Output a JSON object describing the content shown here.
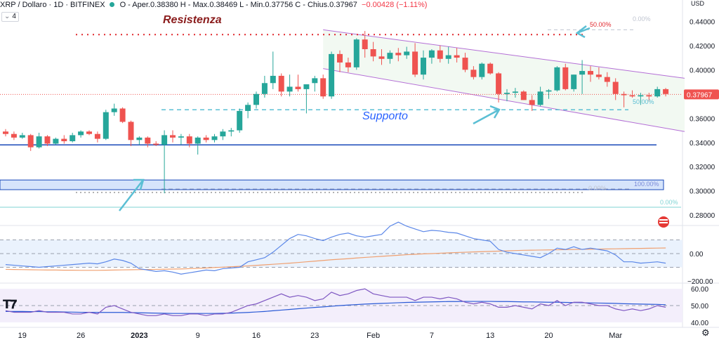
{
  "header": {
    "symbol": "XRP / Dollaro · 1D · BITFINEX",
    "ohlc_text": "O - Aper.0.38380  H - Max.0.38469  L - Min.0.37756  C - Chius.0.37967",
    "change": "−0.00428 (−1.11%)",
    "indicator_count": "4",
    "currency_label": "USD"
  },
  "colors": {
    "up": "#26a69a",
    "down": "#ef5350",
    "resistance": "#e0282e",
    "support": "#5bbfd4",
    "support_label": "#2962ff",
    "channel": "#b46fd6",
    "channel_fill": "#f2f9f2",
    "base_line": "#1848b8",
    "zone_fill": "#d6e4fb",
    "cci_line": "#5b87e8",
    "cci_ma": "#f0a070",
    "rsi_line": "#7e57c2",
    "rsi_ma": "#2a5ad6",
    "fib": "#ef9a9a",
    "fib_teal": "#7fd3d3"
  },
  "annotations": {
    "resistance": "Resistenza",
    "support": "Supporto",
    "fib_top_50": "50.00%",
    "fib_top_0": "0.00%",
    "fib_mid_50": "50.00%",
    "fib_low_100": "100.00%",
    "fib_low_0": "0.00%",
    "fib_low_0b": "0.00%"
  },
  "chart_data": [
    {
      "type": "candlestick",
      "title": "XRP / Dollaro · 1D · BITFINEX",
      "ylim": [
        0.272,
        0.446
      ],
      "yticks": [
        "0.44000",
        "0.42000",
        "0.40000",
        "0.38000",
        "0.36000",
        "0.34000",
        "0.32000",
        "0.30000",
        "0.28000"
      ],
      "last_price_label": "0.37967",
      "xticks": [
        "19",
        "26",
        "2023",
        "9",
        "16",
        "23",
        "Feb",
        "7",
        "13",
        "20",
        "Mar"
      ],
      "xtick_index": [
        2,
        9,
        16,
        23,
        30,
        37,
        44,
        51,
        58,
        65,
        73
      ],
      "levels": {
        "resistance": 0.429,
        "support": 0.367,
        "base_line": 0.338,
        "zone_high": 0.309,
        "zone_low": 0.301
      },
      "ohlc": [
        [
          0.349,
          0.351,
          0.345,
          0.347
        ],
        [
          0.347,
          0.349,
          0.342,
          0.344
        ],
        [
          0.344,
          0.348,
          0.343,
          0.346
        ],
        [
          0.346,
          0.347,
          0.333,
          0.336
        ],
        [
          0.336,
          0.348,
          0.335,
          0.345
        ],
        [
          0.345,
          0.346,
          0.337,
          0.339
        ],
        [
          0.339,
          0.344,
          0.338,
          0.343
        ],
        [
          0.343,
          0.346,
          0.339,
          0.341
        ],
        [
          0.341,
          0.348,
          0.34,
          0.346
        ],
        [
          0.346,
          0.35,
          0.344,
          0.349
        ],
        [
          0.349,
          0.35,
          0.346,
          0.347
        ],
        [
          0.347,
          0.349,
          0.34,
          0.343
        ],
        [
          0.343,
          0.367,
          0.342,
          0.365
        ],
        [
          0.365,
          0.372,
          0.362,
          0.368
        ],
        [
          0.368,
          0.369,
          0.356,
          0.357
        ],
        [
          0.357,
          0.358,
          0.337,
          0.342
        ],
        [
          0.342,
          0.345,
          0.338,
          0.344
        ],
        [
          0.344,
          0.345,
          0.336,
          0.339
        ],
        [
          0.339,
          0.341,
          0.337,
          0.338
        ],
        [
          0.338,
          0.35,
          0.298,
          0.346
        ],
        [
          0.346,
          0.35,
          0.34,
          0.344
        ],
        [
          0.344,
          0.347,
          0.338,
          0.345
        ],
        [
          0.345,
          0.347,
          0.336,
          0.339
        ],
        [
          0.339,
          0.345,
          0.33,
          0.344
        ],
        [
          0.344,
          0.346,
          0.34,
          0.342
        ],
        [
          0.342,
          0.347,
          0.34,
          0.345
        ],
        [
          0.345,
          0.351,
          0.342,
          0.349
        ],
        [
          0.349,
          0.352,
          0.345,
          0.35
        ],
        [
          0.35,
          0.368,
          0.348,
          0.366
        ],
        [
          0.366,
          0.373,
          0.36,
          0.371
        ],
        [
          0.371,
          0.382,
          0.368,
          0.38
        ],
        [
          0.38,
          0.395,
          0.377,
          0.389
        ],
        [
          0.389,
          0.415,
          0.384,
          0.395
        ],
        [
          0.395,
          0.397,
          0.378,
          0.382
        ],
        [
          0.382,
          0.396,
          0.378,
          0.386
        ],
        [
          0.386,
          0.396,
          0.382,
          0.384
        ],
        [
          0.384,
          0.388,
          0.364,
          0.388
        ],
        [
          0.389,
          0.395,
          0.382,
          0.393
        ],
        [
          0.393,
          0.396,
          0.376,
          0.378
        ],
        [
          0.378,
          0.415,
          0.376,
          0.413
        ],
        [
          0.413,
          0.416,
          0.398,
          0.406
        ],
        [
          0.406,
          0.41,
          0.398,
          0.402
        ],
        [
          0.402,
          0.426,
          0.4,
          0.425
        ],
        [
          0.425,
          0.432,
          0.41,
          0.417
        ],
        [
          0.417,
          0.423,
          0.407,
          0.411
        ],
        [
          0.411,
          0.417,
          0.404,
          0.409
        ],
        [
          0.409,
          0.416,
          0.405,
          0.414
        ],
        [
          0.414,
          0.418,
          0.407,
          0.412
        ],
        [
          0.412,
          0.419,
          0.409,
          0.415
        ],
        [
          0.415,
          0.422,
          0.394,
          0.396
        ],
        [
          0.396,
          0.416,
          0.392,
          0.41
        ],
        [
          0.41,
          0.417,
          0.405,
          0.416
        ],
        [
          0.416,
          0.42,
          0.406,
          0.409
        ],
        [
          0.409,
          0.419,
          0.405,
          0.412
        ],
        [
          0.412,
          0.418,
          0.406,
          0.41
        ],
        [
          0.41,
          0.414,
          0.398,
          0.4
        ],
        [
          0.4,
          0.403,
          0.392,
          0.394
        ],
        [
          0.394,
          0.406,
          0.392,
          0.405
        ],
        [
          0.405,
          0.406,
          0.396,
          0.397
        ],
        [
          0.397,
          0.398,
          0.373,
          0.38
        ],
        [
          0.38,
          0.384,
          0.374,
          0.381
        ],
        [
          0.381,
          0.385,
          0.377,
          0.382
        ],
        [
          0.382,
          0.383,
          0.375,
          0.375
        ],
        [
          0.375,
          0.379,
          0.366,
          0.371
        ],
        [
          0.371,
          0.386,
          0.37,
          0.382
        ],
        [
          0.382,
          0.384,
          0.376,
          0.383
        ],
        [
          0.383,
          0.403,
          0.382,
          0.402
        ],
        [
          0.402,
          0.405,
          0.383,
          0.384
        ],
        [
          0.384,
          0.396,
          0.382,
          0.396
        ],
        [
          0.396,
          0.408,
          0.38,
          0.399
        ],
        [
          0.399,
          0.403,
          0.39,
          0.396
        ],
        [
          0.396,
          0.402,
          0.392,
          0.394
        ],
        [
          0.394,
          0.398,
          0.386,
          0.39
        ],
        [
          0.39,
          0.393,
          0.375,
          0.38
        ],
        [
          0.38,
          0.382,
          0.369,
          0.379
        ],
        [
          0.379,
          0.383,
          0.377,
          0.378
        ],
        [
          0.378,
          0.381,
          0.371,
          0.379
        ],
        [
          0.379,
          0.381,
          0.374,
          0.378
        ],
        [
          0.378,
          0.386,
          0.377,
          0.384
        ],
        [
          0.384,
          0.385,
          0.378,
          0.38
        ]
      ]
    },
    {
      "type": "line",
      "ylim": [
        -200,
        200
      ],
      "yticks": [
        "0.00",
        "−200.00"
      ],
      "series": [
        {
          "values": [
            -80,
            -85,
            -90,
            -95,
            -100,
            -95,
            -90,
            -85,
            -80,
            -75,
            -70,
            -75,
            -60,
            -40,
            -50,
            -70,
            -110,
            -120,
            -130,
            -125,
            -135,
            -150,
            -140,
            -130,
            -120,
            -125,
            -110,
            -105,
            -100,
            -60,
            -45,
            -30,
            10,
            60,
            110,
            140,
            130,
            110,
            95,
            120,
            140,
            150,
            130,
            120,
            130,
            140,
            200,
            230,
            200,
            180,
            160,
            170,
            165,
            155,
            150,
            130,
            110,
            100,
            90,
            30,
            10,
            0,
            -10,
            -20,
            -30,
            0,
            40,
            30,
            50,
            30,
            40,
            30,
            20,
            -10,
            -60,
            -60,
            -70,
            -65,
            -60,
            -70
          ]
        },
        {
          "values": [
            -115,
            -116,
            -117,
            -118,
            -119,
            -120,
            -120,
            -121,
            -121,
            -122,
            -122,
            -122,
            -121,
            -120,
            -119,
            -118,
            -117,
            -116,
            -115,
            -114,
            -113,
            -112,
            -110,
            -108,
            -105,
            -102,
            -99,
            -96,
            -93,
            -90,
            -86,
            -82,
            -78,
            -74,
            -70,
            -65,
            -60,
            -55,
            -50,
            -45,
            -41,
            -37,
            -32,
            -28,
            -24,
            -20,
            -16,
            -12,
            -8,
            -5,
            -2,
            0,
            3,
            5,
            8,
            10,
            12,
            14,
            16,
            18,
            20,
            22,
            24,
            25,
            26,
            27,
            28,
            29,
            30,
            31,
            32,
            33,
            34,
            35,
            36,
            37,
            38,
            39,
            40,
            41
          ]
        }
      ]
    },
    {
      "type": "line",
      "ylim": [
        37,
        63
      ],
      "yticks": [
        "60.00",
        "50.00",
        "40.00"
      ],
      "series": [
        {
          "values": [
            47,
            46,
            46,
            46,
            47,
            46,
            46,
            46,
            45,
            45,
            46,
            45,
            49,
            50,
            48,
            46,
            45,
            44,
            44,
            45,
            44,
            44,
            45,
            45,
            44,
            45,
            45,
            46,
            48,
            50,
            51,
            53,
            55,
            57,
            55,
            56,
            55,
            53,
            54,
            58,
            56,
            57,
            59,
            60,
            57,
            56,
            55,
            55,
            55,
            53,
            55,
            55,
            54,
            55,
            54,
            52,
            51,
            52,
            51,
            49,
            49,
            50,
            49,
            48,
            51,
            50,
            53,
            50,
            52,
            52,
            51,
            50,
            50,
            48,
            47,
            48,
            47,
            48,
            50,
            49
          ]
        },
        {
          "values": [
            46.5,
            46.5,
            46.5,
            46.4,
            46.4,
            46.3,
            46.3,
            46.2,
            46.1,
            46.0,
            46.0,
            45.9,
            45.9,
            45.9,
            45.9,
            45.8,
            45.7,
            45.6,
            45.5,
            45.4,
            45.3,
            45.3,
            45.3,
            45.3,
            45.3,
            45.3,
            45.4,
            45.5,
            45.7,
            45.9,
            46.2,
            46.5,
            46.9,
            47.3,
            47.7,
            48.1,
            48.5,
            48.9,
            49.2,
            49.6,
            50.0,
            50.3,
            50.6,
            50.9,
            51.1,
            51.3,
            51.5,
            51.7,
            51.9,
            52.0,
            52.1,
            52.2,
            52.3,
            52.4,
            52.4,
            52.5,
            52.5,
            52.5,
            52.5,
            52.4,
            52.4,
            52.3,
            52.2,
            52.2,
            52.1,
            52.0,
            52.0,
            51.9,
            51.8,
            51.7,
            51.6,
            51.5,
            51.4,
            51.3,
            51.1,
            51.0,
            50.9,
            50.8,
            50.7,
            50.5
          ]
        }
      ]
    }
  ]
}
